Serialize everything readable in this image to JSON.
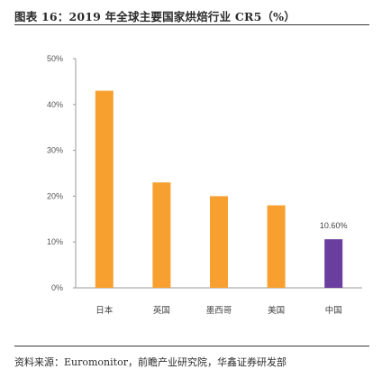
{
  "header": {
    "title": "图表 16：2019 年全球主要国家烘焙行业 CR5（%）"
  },
  "footer": {
    "source": "资料来源：Euromonitor，前瞻产业研究院，华鑫证券研发部"
  },
  "chart_data": {
    "type": "bar",
    "title": "",
    "xlabel": "",
    "ylabel": "",
    "categories": [
      "日本",
      "英国",
      "墨西哥",
      "美国",
      "中国"
    ],
    "values": [
      43,
      23,
      20,
      18,
      10.6
    ],
    "data_labels": [
      "",
      "",
      "",
      "",
      "10.60%"
    ],
    "colors": [
      "#F7A030",
      "#F7A030",
      "#F7A030",
      "#F7A030",
      "#6A3E9E"
    ],
    "ylim": [
      0,
      50
    ],
    "yticks": [
      "0%",
      "10%",
      "20%",
      "30%",
      "40%",
      "50%"
    ],
    "grid": false,
    "legend": "none"
  }
}
